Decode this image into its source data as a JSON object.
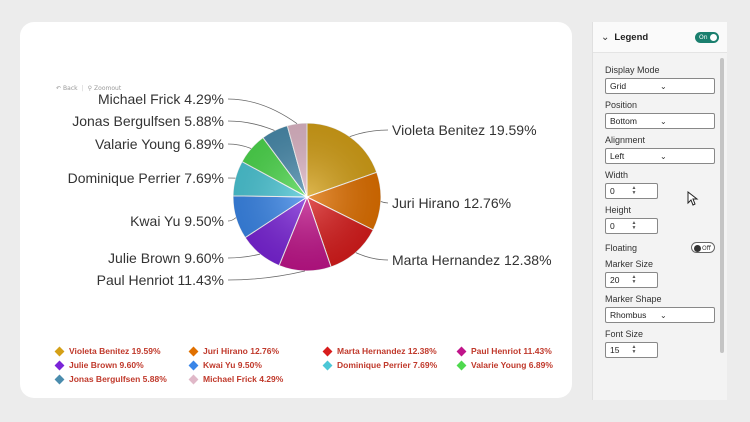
{
  "toolbar": {
    "back_label": "Back",
    "zoomout_label": "Zoomout"
  },
  "chart_data": {
    "type": "pie",
    "slices": [
      {
        "label": "Violeta Benitez",
        "value": 19.59,
        "color": "#d4a017"
      },
      {
        "label": "Juri Hirano",
        "value": 12.76,
        "color": "#e07000"
      },
      {
        "label": "Marta Hernandez",
        "value": 12.38,
        "color": "#d81c1c"
      },
      {
        "label": "Paul Henriot",
        "value": 11.43,
        "color": "#c0148a"
      },
      {
        "label": "Julie Brown",
        "value": 9.6,
        "color": "#7a24d8"
      },
      {
        "label": "Kwai Yu",
        "value": 9.5,
        "color": "#3a86e8"
      },
      {
        "label": "Dominique Perrier",
        "value": 7.69,
        "color": "#4cc7d6"
      },
      {
        "label": "Valarie Young",
        "value": 6.89,
        "color": "#4ed94e"
      },
      {
        "label": "Jonas Bergulfsen",
        "value": 5.88,
        "color": "#4a8cad"
      },
      {
        "label": "Michael Frick",
        "value": 4.29,
        "color": "#e0b8c8"
      }
    ],
    "data_labels": [
      "Violeta Benitez 19.59%",
      "Juri Hirano 12.76%",
      "Marta Hernandez 12.38%",
      "Paul Henriot 11.43%",
      "Julie Brown 9.60%",
      "Kwai Yu 9.50%",
      "Dominique Perrier 7.69%",
      "Valarie Young 6.89%",
      "Jonas Bergulfsen 5.88%",
      "Michael Frick 4.29%"
    ],
    "legend_placement": "bottom",
    "legend_marker": "rhombus"
  },
  "legend_rows": [
    [
      "Violeta Benitez 19.59%",
      "Juri Hirano 12.76%",
      "Marta Hernandez 12.38%",
      "Paul Henriot 11.43%"
    ],
    [
      "Julie Brown 9.60%",
      "Kwai Yu 9.50%",
      "Dominique Perrier 7.69%",
      "Valarie Young 6.89%"
    ],
    [
      "Jonas Bergulfsen 5.88%",
      "Michael Frick 4.29%"
    ]
  ],
  "legend_colors": [
    [
      "#d4a017",
      "#e07000",
      "#d81c1c",
      "#c0148a"
    ],
    [
      "#7a24d8",
      "#3a86e8",
      "#4cc7d6",
      "#4ed94e"
    ],
    [
      "#4a8cad",
      "#e0b8c8"
    ]
  ],
  "panel": {
    "title": "Legend",
    "toggle_on": "On",
    "display_mode_label": "Display Mode",
    "display_mode_value": "Grid",
    "position_label": "Position",
    "position_value": "Bottom",
    "alignment_label": "Alignment",
    "alignment_value": "Left",
    "width_label": "Width",
    "width_value": "0",
    "height_label": "Height",
    "height_value": "0",
    "floating_label": "Floating",
    "floating_toggle": "Off",
    "marker_size_label": "Marker Size",
    "marker_size_value": "20",
    "marker_shape_label": "Marker Shape",
    "marker_shape_value": "Rhombus",
    "font_size_label": "Font Size",
    "font_size_value": "15"
  }
}
